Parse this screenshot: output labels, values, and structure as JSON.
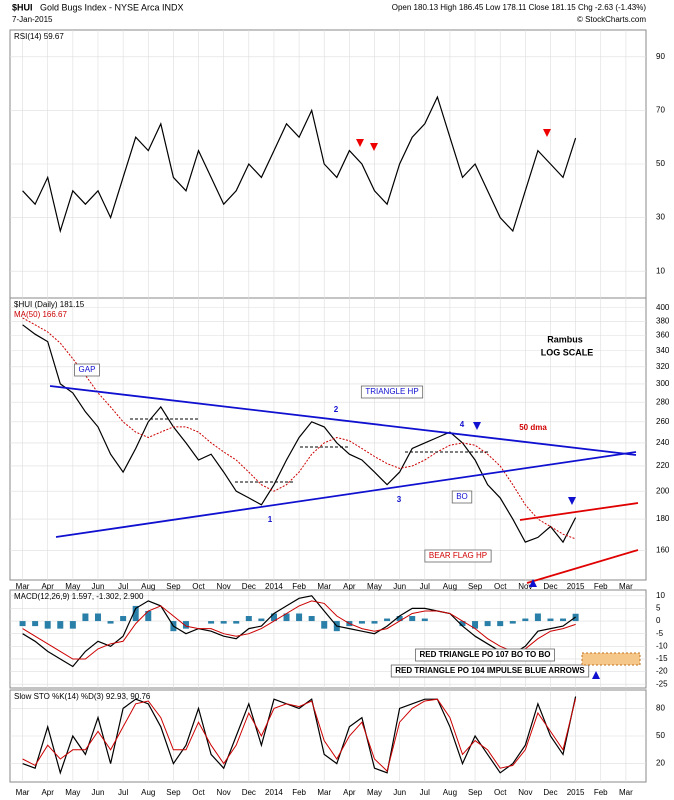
{
  "header": {
    "symbol": "$HUI",
    "name": "Gold Bugs Index - NYSE Arca INDX",
    "date": "7-Jan-2015",
    "quote": "Open 180.13 High 186.45 Low 178.11 Close 181.15 Chg -2.63 (-1.43%)",
    "credit": "© StockCharts.com"
  },
  "chart_data": [
    {
      "type": "line",
      "title": "RSI(14) 59.67",
      "x": [
        0,
        0.5,
        1,
        1.5,
        2,
        2.5,
        3,
        3.5,
        4,
        4.5,
        5,
        5.5,
        6,
        6.5,
        7,
        7.5,
        8,
        8.5,
        9,
        9.5,
        10,
        10.5,
        11,
        11.5,
        12,
        12.5,
        13,
        13.5,
        14,
        14.5,
        15,
        15.5,
        16,
        16.5,
        17,
        17.5,
        18,
        18.5,
        19,
        19.5,
        20,
        20.5,
        21,
        21.5,
        22
      ],
      "series": [
        {
          "color": "#000000",
          "values": [
            40,
            35,
            45,
            25,
            40,
            35,
            40,
            30,
            45,
            60,
            55,
            65,
            45,
            40,
            55,
            45,
            35,
            40,
            50,
            45,
            55,
            65,
            60,
            70,
            50,
            45,
            55,
            50,
            40,
            35,
            50,
            60,
            65,
            75,
            60,
            45,
            50,
            40,
            30,
            25,
            40,
            55,
            50,
            45,
            59.67
          ]
        }
      ],
      "xlim": [
        -0.5,
        24.8
      ],
      "ylim": [
        0,
        100
      ],
      "yticks": [
        10,
        30,
        50,
        70,
        90
      ]
    },
    {
      "type": "line",
      "log_scale": true,
      "x": [
        0,
        0.5,
        1,
        1.5,
        2,
        2.5,
        3,
        3.5,
        4,
        4.5,
        5,
        5.5,
        6,
        6.5,
        7,
        7.5,
        8,
        8.5,
        9,
        9.5,
        10,
        10.5,
        11,
        11.5,
        12,
        12.5,
        13,
        13.5,
        14,
        14.5,
        15,
        15.5,
        16,
        16.5,
        17,
        17.5,
        18,
        18.5,
        19,
        19.5,
        20,
        20.5,
        21,
        21.5,
        22
      ],
      "series": [
        {
          "name": "$HUI (Daily) 181.15",
          "color": "#000000",
          "values": [
            375,
            362,
            352,
            300,
            290,
            270,
            255,
            230,
            215,
            235,
            260,
            275,
            255,
            240,
            225,
            230,
            215,
            200,
            195,
            190,
            205,
            225,
            245,
            260,
            255,
            240,
            230,
            225,
            215,
            205,
            215,
            235,
            240,
            245,
            250,
            240,
            225,
            205,
            195,
            180,
            165,
            168,
            175,
            165,
            181
          ]
        },
        {
          "name": "MA(50) 166.67",
          "color": "#cc0000",
          "values": [
            385,
            375,
            365,
            350,
            330,
            310,
            290,
            275,
            260,
            250,
            245,
            250,
            255,
            255,
            250,
            240,
            232,
            225,
            215,
            205,
            200,
            205,
            215,
            230,
            240,
            245,
            242,
            235,
            228,
            222,
            218,
            220,
            225,
            232,
            238,
            240,
            238,
            230,
            220,
            205,
            190,
            180,
            175,
            170,
            167
          ]
        }
      ],
      "annotations": [
        "Rambus",
        "LOG SCALE",
        "TRIANGLE HP",
        "GAP",
        "50 dma",
        "BO",
        "BEAR FLAG HP",
        "1",
        "2",
        "3",
        "4"
      ],
      "xlim": [
        -0.5,
        24.8
      ],
      "ylim": [
        143,
        415
      ],
      "yticks": [
        160,
        180,
        200,
        220,
        240,
        260,
        280,
        300,
        320,
        340,
        360,
        380,
        400
      ],
      "xticks": [
        {
          "value": 0,
          "label": "Mar"
        },
        {
          "value": 1,
          "label": "Apr"
        },
        {
          "value": 2,
          "label": "May"
        },
        {
          "value": 3,
          "label": "Jun"
        },
        {
          "value": 4,
          "label": "Jul"
        },
        {
          "value": 5,
          "label": "Aug"
        },
        {
          "value": 6,
          "label": "Sep"
        },
        {
          "value": 7,
          "label": "Oct"
        },
        {
          "value": 8,
          "label": "Nov"
        },
        {
          "value": 9,
          "label": "Dec"
        },
        {
          "value": 10,
          "label": "2014"
        },
        {
          "value": 11,
          "label": "Feb"
        },
        {
          "value": 12,
          "label": "Mar"
        },
        {
          "value": 13,
          "label": "Apr"
        },
        {
          "value": 14,
          "label": "May"
        },
        {
          "value": 15,
          "label": "Jun"
        },
        {
          "value": 16,
          "label": "Jul"
        },
        {
          "value": 17,
          "label": "Aug"
        },
        {
          "value": 18,
          "label": "Sep"
        },
        {
          "value": 19,
          "label": "Oct"
        },
        {
          "value": 20,
          "label": "Nov"
        },
        {
          "value": 21,
          "label": "Dec"
        },
        {
          "value": 22,
          "label": "2015"
        },
        {
          "value": 23,
          "label": "Feb"
        },
        {
          "value": 24,
          "label": "Mar"
        }
      ]
    },
    {
      "type": "line",
      "title": "MACD(12,26,9) 1.597, -1.302, 2.900",
      "x": [
        0,
        0.5,
        1,
        1.5,
        2,
        2.5,
        3,
        3.5,
        4,
        4.5,
        5,
        5.5,
        6,
        6.5,
        7,
        7.5,
        8,
        8.5,
        9,
        9.5,
        10,
        10.5,
        11,
        11.5,
        12,
        12.5,
        13,
        13.5,
        14,
        14.5,
        15,
        15.5,
        16,
        16.5,
        17,
        17.5,
        18,
        18.5,
        19,
        19.5,
        20,
        20.5,
        21,
        21.5,
        22
      ],
      "series": [
        {
          "color": "#000000",
          "values": [
            -5,
            -8,
            -12,
            -15,
            -18,
            -12,
            -8,
            -10,
            -6,
            5,
            8,
            6,
            -2,
            -5,
            -3,
            -4,
            -6,
            -7,
            -3,
            -2,
            3,
            6,
            9,
            10,
            4,
            -2,
            -3,
            -4,
            -5,
            -2,
            2,
            5,
            5,
            4,
            3,
            -2,
            -6,
            -9,
            -12,
            -13,
            -10,
            -4,
            -3,
            -2,
            1.597
          ]
        },
        {
          "color": "#cc0000",
          "values": [
            -3,
            -6,
            -9,
            -12,
            -15,
            -15,
            -11,
            -9,
            -8,
            -1,
            4,
            6,
            2,
            -2,
            -3,
            -3,
            -5,
            -6,
            -5,
            -3,
            0,
            3,
            6,
            8,
            7,
            2,
            -1,
            -3,
            -4,
            -3,
            0,
            3,
            4,
            4,
            3,
            0,
            -3,
            -7,
            -10,
            -12,
            -11,
            -7,
            -4,
            -3,
            -1.302
          ]
        }
      ],
      "histogram": {
        "color": "#2a7fa8",
        "values": [
          -2,
          -2,
          -3,
          -3,
          -3,
          3,
          3,
          -1,
          2,
          6,
          4,
          0,
          -4,
          -3,
          0,
          -1,
          -1,
          -1,
          2,
          1,
          3,
          3,
          3,
          2,
          -3,
          -4,
          -2,
          -1,
          -1,
          1,
          2,
          2,
          1,
          0,
          0,
          -2,
          -3,
          -2,
          -2,
          -1,
          1,
          3,
          1,
          1,
          2.9
        ]
      },
      "annotations": [
        "RED TRIANGLE PO 107 BO TO BO",
        "RED TRIANGLE PO 104 IMPULSE BLUE ARROWS"
      ],
      "xlim": [
        -0.5,
        24.8
      ],
      "ylim": [
        -26.5,
        12.3
      ],
      "yticks": [
        -25,
        -20,
        -15,
        -10,
        -5,
        0,
        5,
        10
      ]
    },
    {
      "type": "line",
      "title": "Slow STO %K(14) %D(3) 92.93, 90.76",
      "x": [
        0,
        0.5,
        1,
        1.5,
        2,
        2.5,
        3,
        3.5,
        4,
        4.5,
        5,
        5.5,
        6,
        6.5,
        7,
        7.5,
        8,
        8.5,
        9,
        9.5,
        10,
        10.5,
        11,
        11.5,
        12,
        12.5,
        13,
        13.5,
        14,
        14.5,
        15,
        15.5,
        16,
        16.5,
        17,
        17.5,
        18,
        18.5,
        19,
        19.5,
        20,
        20.5,
        21,
        21.5,
        22
      ],
      "series": [
        {
          "color": "#000000",
          "values": [
            20,
            15,
            60,
            10,
            50,
            30,
            70,
            20,
            80,
            90,
            85,
            60,
            20,
            40,
            80,
            30,
            15,
            50,
            85,
            40,
            90,
            85,
            80,
            90,
            30,
            20,
            60,
            70,
            15,
            10,
            80,
            85,
            90,
            90,
            60,
            20,
            50,
            30,
            10,
            20,
            40,
            85,
            50,
            30,
            92.93
          ]
        },
        {
          "color": "#cc0000",
          "values": [
            25,
            18,
            40,
            25,
            35,
            35,
            55,
            35,
            60,
            85,
            88,
            70,
            35,
            35,
            65,
            40,
            20,
            40,
            75,
            50,
            80,
            85,
            82,
            88,
            45,
            25,
            50,
            65,
            25,
            12,
            65,
            80,
            88,
            90,
            70,
            30,
            45,
            35,
            15,
            18,
            35,
            75,
            55,
            35,
            90.76
          ]
        }
      ],
      "xlim": [
        -0.5,
        24.8
      ],
      "ylim": [
        0,
        100
      ],
      "yticks": [
        20,
        50,
        80
      ]
    }
  ]
}
